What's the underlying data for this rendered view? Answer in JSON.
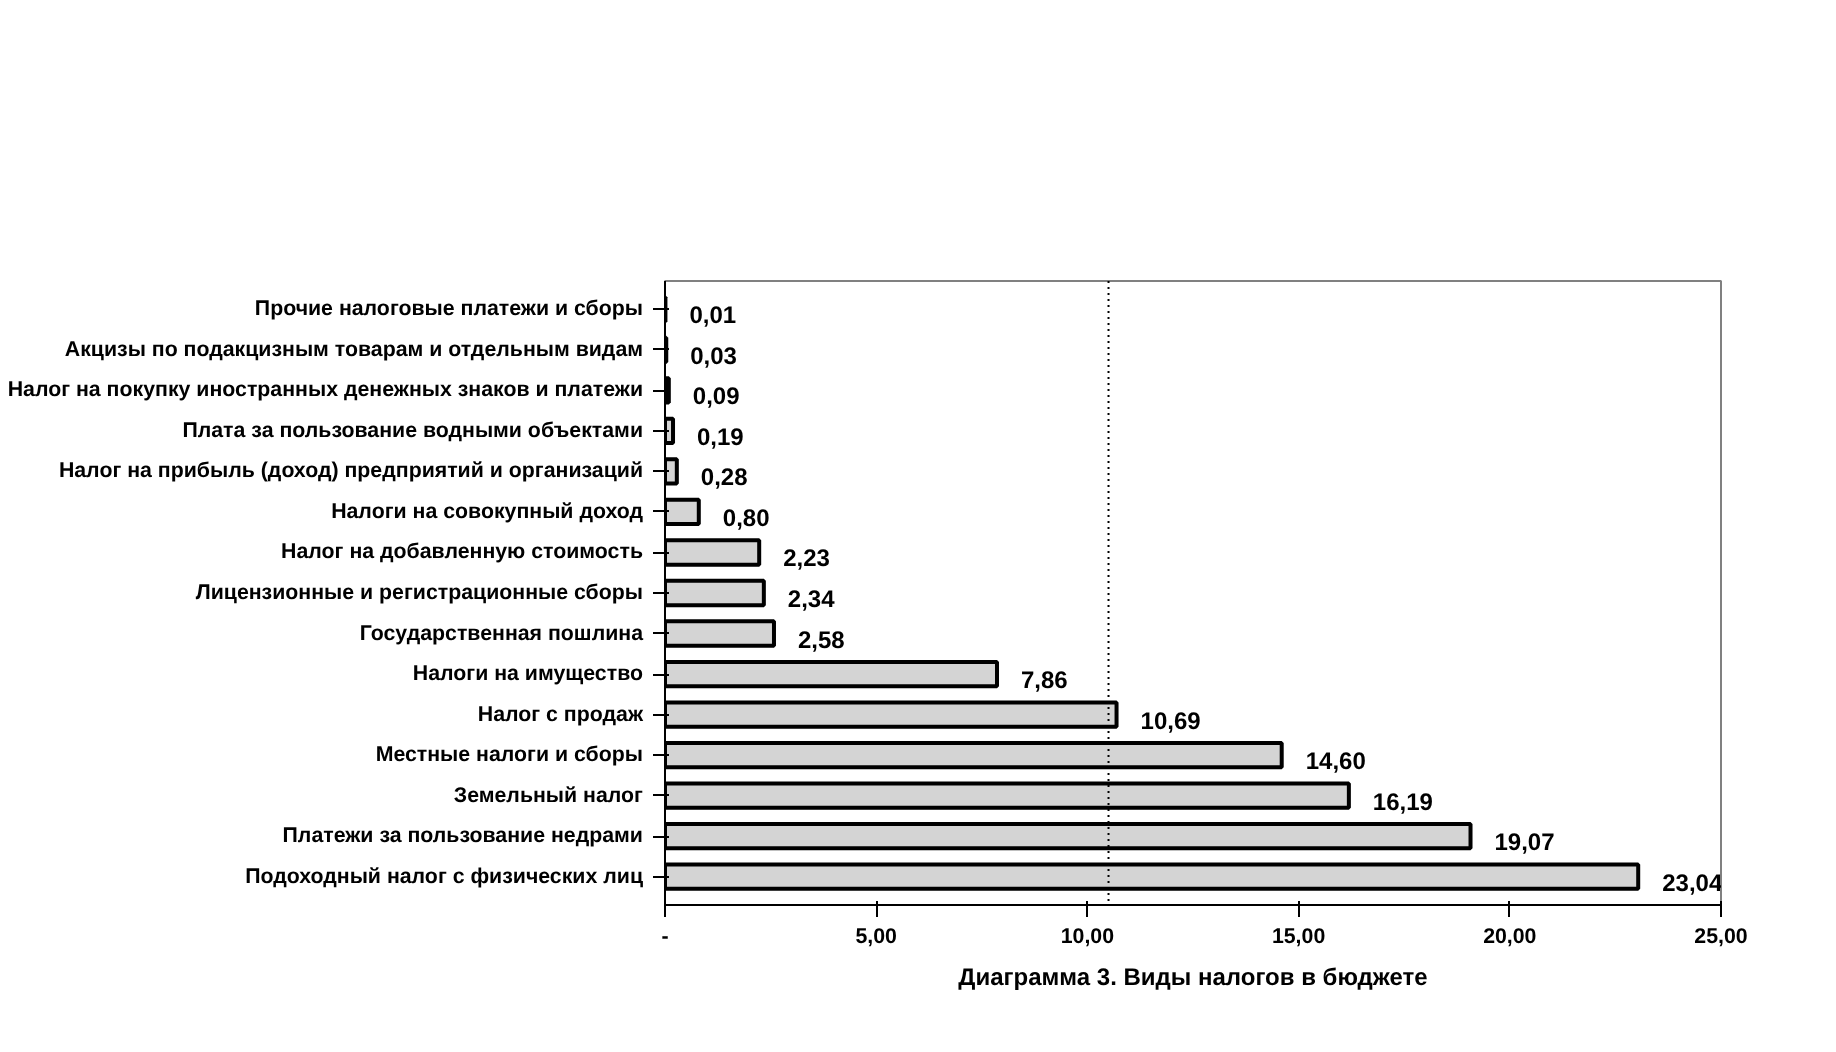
{
  "chart_data": {
    "type": "bar",
    "orientation": "horizontal",
    "title": "Диаграмма 3. Виды налогов в бюджете",
    "categories": [
      "Прочие налоговые платежи и сборы",
      "Акцизы по подакцизным товарам и отдельным видам",
      "Налог на покупку иностранных денежных знаков и платежи",
      "Плата за пользование водными объектами",
      "Налог на прибыль (доход) предприятий и организаций",
      "Налоги на совокупный доход",
      "Налог на добавленную стоимость",
      "Лицензионные и регистрационные сборы",
      "Государственная пошлина",
      "Налоги на имущество",
      "Налог с продаж",
      "Местные налоги и сборы",
      "Земельный налог",
      "Платежи за пользование недрами",
      "Подоходный налог с физических лиц"
    ],
    "values": [
      0.01,
      0.03,
      0.09,
      0.19,
      0.28,
      0.8,
      2.23,
      2.34,
      2.58,
      7.86,
      10.69,
      14.6,
      16.19,
      19.07,
      23.04
    ],
    "value_labels": [
      "0,01",
      "0,03",
      "0,09",
      "0,19",
      "0,28",
      "0,80",
      "2,23",
      "2,34",
      "2,58",
      "7,86",
      "10,69",
      "14,60",
      "16,19",
      "19,07",
      "23,04"
    ],
    "color": "#d4d4d4",
    "xlim": [
      0,
      25
    ],
    "xticks": [
      {
        "value": 0,
        "label": "-"
      },
      {
        "value": 5,
        "label": "5,00"
      },
      {
        "value": 10,
        "label": "10,00"
      },
      {
        "value": 15,
        "label": "15,00"
      },
      {
        "value": 20,
        "label": "20,00"
      },
      {
        "value": 25,
        "label": "25,00"
      }
    ],
    "ref_lines": [
      {
        "axis": "x",
        "value": 10.5,
        "line_style": "dotted",
        "color": "#000000"
      }
    ],
    "grid": false
  }
}
